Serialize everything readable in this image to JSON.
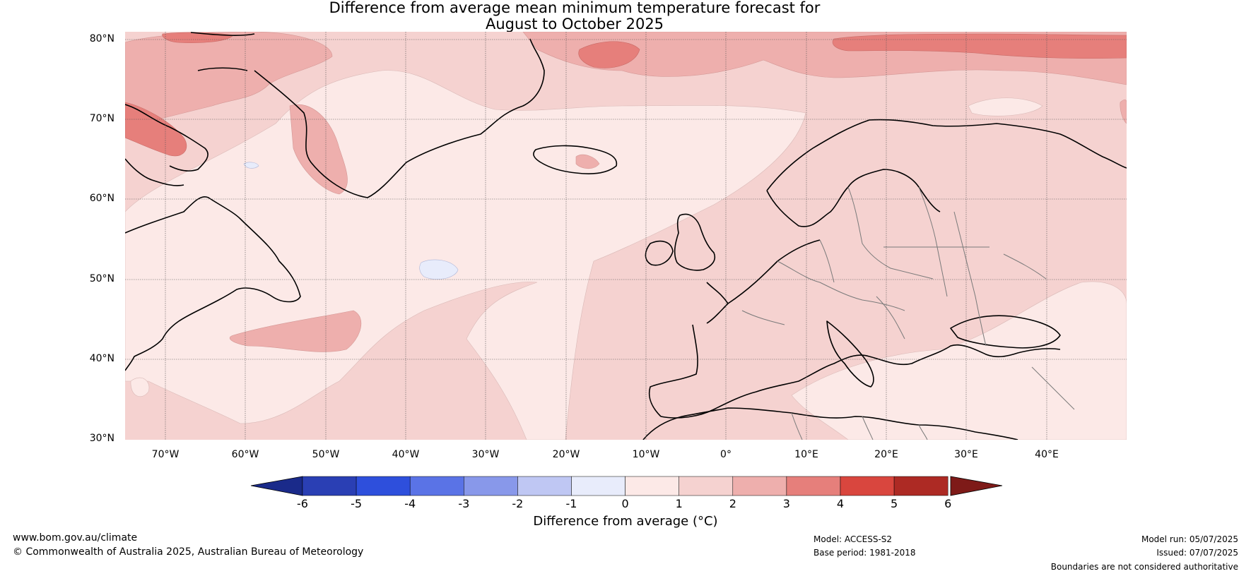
{
  "title": {
    "line1": "Difference from average mean minimum temperature forecast for",
    "line2": "August to October 2025"
  },
  "map": {
    "lat_labels": [
      "80°N",
      "70°N",
      "60°N",
      "50°N",
      "40°N",
      "30°N"
    ],
    "lon_labels": [
      "70°W",
      "60°W",
      "50°W",
      "40°W",
      "30°W",
      "20°W",
      "10°W",
      "0°",
      "10°E",
      "20°E",
      "30°E",
      "40°E"
    ],
    "extent": {
      "lon": [
        -75,
        50
      ],
      "lat": [
        30,
        81
      ]
    },
    "colors": {
      "band_0_1": "#fce9e7",
      "band_1_2": "#f5d2d0",
      "band_2_3": "#eeafad",
      "band_3_4": "#e67f7b",
      "band_m1_0": "#e8ecfb",
      "coastline": "#000000",
      "borders": "#7a7a7a"
    }
  },
  "colorbar": {
    "ticks": [
      "-6",
      "-5",
      "-4",
      "-3",
      "-2",
      "-1",
      "0",
      "1",
      "2",
      "3",
      "4",
      "5",
      "6"
    ],
    "colors": [
      "#1a2a8a",
      "#2a3fb4",
      "#2e4fdc",
      "#5a73e6",
      "#8898ea",
      "#bfc7f3",
      "#e8ecfb",
      "#fce9e7",
      "#f5d2d0",
      "#eeafad",
      "#e67f7b",
      "#d9463e",
      "#ad2a24",
      "#7e1a18"
    ],
    "label": "Difference from average (°C)"
  },
  "footer": {
    "website": "www.bom.gov.au/climate",
    "copyright": "© Commonwealth of Australia 2025, Australian Bureau of Meteorology",
    "model": "Model: ACCESS-S2",
    "base_period": "Base period: 1981-2018",
    "model_run": "Model run: 05/07/2025",
    "issued": "Issued: 07/07/2025",
    "disclaimer": "Boundaries are not considered authoritative"
  }
}
